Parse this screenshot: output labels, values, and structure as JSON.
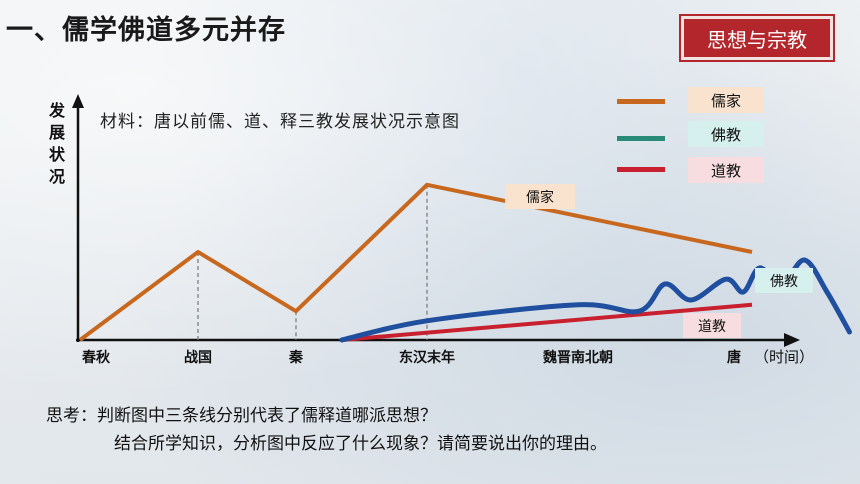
{
  "page_title": "一、儒学佛道多元并存",
  "badge": "思想与宗教",
  "caption": "材料：唐以前儒、道、释三教发展状况示意图",
  "thinking": {
    "line1": "思考：判断图中三条线分别代表了儒释道哪派思想？",
    "line2": "结合所学知识，分析图中反应了什么现象？请简要说出你的理由。"
  },
  "colors": {
    "confucian": "#c8681e",
    "buddhist": "#1f4f9e",
    "taoist": "#c8202e",
    "legend_buddhist": "#2a8a78",
    "badge": "#b3262b"
  },
  "chart_data": {
    "type": "line",
    "ylabel": "发展状况",
    "xlabel": "（时间）",
    "categories": [
      "春秋",
      "战国",
      "秦",
      "东汉末年",
      "魏晋南北朝",
      "唐"
    ],
    "legend": [
      {
        "name": "儒家",
        "color": "#c8681e"
      },
      {
        "name": "佛教",
        "color": "#2a8a78"
      },
      {
        "name": "道教",
        "color": "#c8202e"
      }
    ],
    "series": [
      {
        "name": "儒家",
        "label": "儒家",
        "points": [
          [
            0,
            0
          ],
          [
            1,
            0.55
          ],
          [
            2,
            0.18
          ],
          [
            3,
            0.97
          ],
          [
            5.0,
            0.55
          ]
        ]
      },
      {
        "name": "佛教",
        "label": "佛教",
        "points": [
          [
            2.35,
            0
          ],
          [
            3,
            0.12
          ],
          [
            4,
            0.22
          ],
          [
            4.35,
            0.18
          ],
          [
            4.5,
            0.35
          ],
          [
            4.65,
            0.25
          ],
          [
            4.85,
            0.38
          ],
          [
            4.95,
            0.3
          ],
          [
            5.05,
            0.45
          ],
          [
            5.2,
            0.35
          ],
          [
            5.35,
            0.5
          ],
          [
            5.5,
            0.3
          ],
          [
            5.65,
            0.05
          ]
        ]
      },
      {
        "name": "道教",
        "label": "道教",
        "points": [
          [
            2.35,
            0
          ],
          [
            5.0,
            0.22
          ]
        ]
      }
    ]
  }
}
